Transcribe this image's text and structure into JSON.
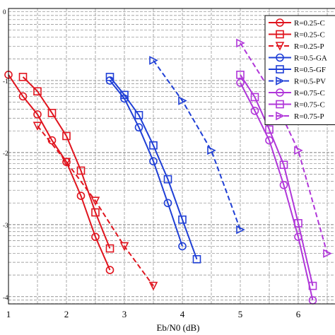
{
  "chart_data": {
    "type": "line",
    "xlabel": "Eb/N0 (dB)",
    "ylabel": "",
    "xlim": [
      1,
      6.6
    ],
    "ylim": [
      -4.1,
      0
    ],
    "x_ticks": [
      1,
      2,
      3,
      4,
      5,
      6
    ],
    "y_ticks": [
      0,
      -1,
      -2,
      -3,
      -4
    ],
    "y_tick_labels": [
      "0",
      "-1",
      "-2",
      "-3",
      "-4"
    ],
    "log_scale_y": true,
    "grid": "major and minor, dashed",
    "legend_position": "top-right (clipped at right edge)",
    "series": [
      {
        "name": "R=0.25-C",
        "color": "#e0141e",
        "marker": "circle",
        "dash": "solid",
        "x": [
          1.0,
          1.25,
          1.5,
          1.75,
          2.0,
          2.25,
          2.5,
          2.75
        ],
        "y": [
          -0.92,
          -1.22,
          -1.47,
          -1.83,
          -2.13,
          -2.6,
          -3.17,
          -3.63
        ]
      },
      {
        "name": "R=0.25-C",
        "color": "#e0141e",
        "marker": "square",
        "dash": "solid",
        "x": [
          1.25,
          1.5,
          1.75,
          2.0,
          2.25,
          2.5,
          2.75
        ],
        "y": [
          -0.95,
          -1.15,
          -1.45,
          -1.77,
          -2.25,
          -2.83,
          -3.33
        ]
      },
      {
        "name": "R=0.25-P",
        "color": "#e0141e",
        "marker": "triangle-down",
        "dash": "dashed",
        "x": [
          1.5,
          2.0,
          2.5,
          3.0,
          3.5
        ],
        "y": [
          -1.63,
          -2.13,
          -2.67,
          -3.3,
          -3.85
        ]
      },
      {
        "name": "R=0.5-GA",
        "color": "#1f3fd6",
        "marker": "circle",
        "dash": "solid",
        "x": [
          2.75,
          3.0,
          3.25,
          3.5,
          3.75,
          4.0
        ],
        "y": [
          -1.0,
          -1.25,
          -1.65,
          -2.12,
          -2.7,
          -3.3
        ]
      },
      {
        "name": "R=0.5-GF",
        "color": "#1f3fd6",
        "marker": "square",
        "dash": "solid",
        "x": [
          2.75,
          3.0,
          3.25,
          3.5,
          3.75,
          4.0,
          4.25
        ],
        "y": [
          -0.95,
          -1.2,
          -1.48,
          -1.9,
          -2.37,
          -2.93,
          -3.48
        ]
      },
      {
        "name": "R=0.5-PV",
        "color": "#1f3fd6",
        "marker": "triangle-right",
        "dash": "dashed",
        "x": [
          3.5,
          4.0,
          4.5,
          5.0
        ],
        "y": [
          -0.72,
          -1.28,
          -1.97,
          -3.07
        ]
      },
      {
        "name": "R=0.75-C",
        "color": "#b036d9",
        "marker": "circle",
        "dash": "solid",
        "x": [
          5.0,
          5.25,
          5.5,
          5.75,
          6.0,
          6.25
        ],
        "y": [
          -1.03,
          -1.42,
          -1.83,
          -2.45,
          -3.17,
          -4.05
        ]
      },
      {
        "name": "R=0.75-C",
        "color": "#b036d9",
        "marker": "square",
        "dash": "solid",
        "x": [
          5.0,
          5.25,
          5.5,
          5.75,
          6.0,
          6.25
        ],
        "y": [
          -0.92,
          -1.23,
          -1.68,
          -2.17,
          -2.98,
          -3.85
        ]
      },
      {
        "name": "R=0.75-P",
        "color": "#b036d9",
        "marker": "triangle-right",
        "dash": "dashed",
        "x": [
          5.0,
          5.5,
          6.0,
          6.5
        ],
        "y": [
          -0.48,
          -1.12,
          -1.97,
          -3.4
        ]
      }
    ]
  }
}
